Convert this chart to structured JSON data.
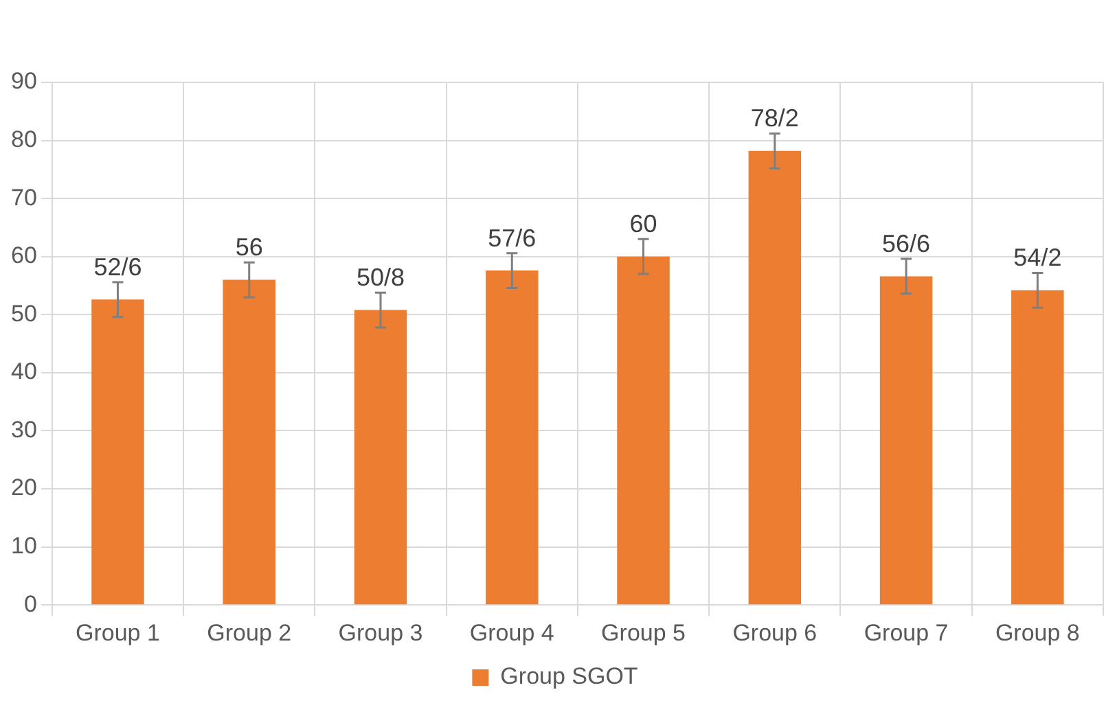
{
  "chart_data": {
    "type": "bar",
    "categories": [
      "Group 1",
      "Group 2",
      "Group 3",
      "Group 4",
      "Group 5",
      "Group 6",
      "Group 7",
      "Group 8"
    ],
    "series": [
      {
        "name": "Group SGOT",
        "color": "#ed7d31",
        "values": [
          52.6,
          56,
          50.8,
          57.6,
          60,
          78.2,
          56.6,
          54.2
        ],
        "errors": [
          3,
          3,
          3,
          3,
          3,
          3,
          3,
          3
        ],
        "value_labels": [
          "52/6",
          "56",
          "50/8",
          "57/6",
          "60",
          "78/2",
          "56/6",
          "54/2"
        ]
      }
    ],
    "ylim": [
      0,
      90
    ],
    "yticks": [
      0,
      10,
      20,
      30,
      40,
      50,
      60,
      70,
      80,
      90
    ],
    "grid": true,
    "legend": "bottom"
  }
}
